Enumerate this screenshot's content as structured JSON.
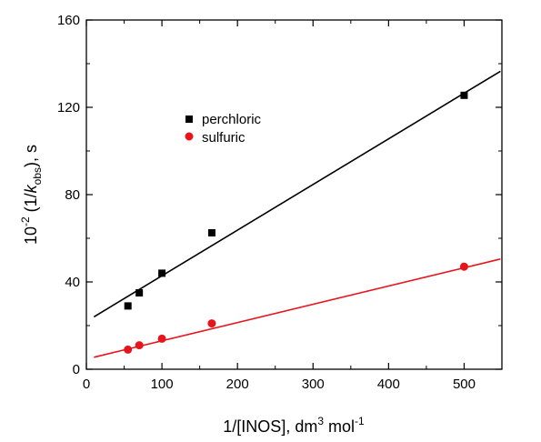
{
  "chart_data": {
    "type": "scatter",
    "title": "",
    "xlabel": {
      "main": "1/[INOS], dm",
      "sup1": "3",
      "mid": " mol",
      "sup2": "-1"
    },
    "ylabel": {
      "base": "10",
      "exp": "-2",
      "open": " (1/",
      "k": "k",
      "sub": "obs",
      "close": "), s"
    },
    "xlim": [
      0,
      550
    ],
    "ylim": [
      0,
      160
    ],
    "xticks": [
      0,
      100,
      200,
      300,
      400,
      500
    ],
    "yticks": [
      0,
      40,
      80,
      120,
      160
    ],
    "grid": false,
    "legend_position": "upper-left",
    "series": [
      {
        "name": "perchloric",
        "marker": "square",
        "color": "#000000",
        "x": [
          55,
          70,
          100,
          166,
          500
        ],
        "y": [
          29,
          35,
          44,
          62.5,
          125.5
        ],
        "fit": {
          "x": [
            10,
            548
          ],
          "y": [
            24,
            136.5
          ]
        }
      },
      {
        "name": "sulfuric",
        "marker": "circle",
        "color": "#e8141c",
        "x": [
          55,
          70,
          100,
          166,
          500
        ],
        "y": [
          9,
          11,
          14,
          21,
          47
        ],
        "fit": {
          "x": [
            10,
            548
          ],
          "y": [
            5.5,
            50.5
          ]
        }
      }
    ]
  }
}
